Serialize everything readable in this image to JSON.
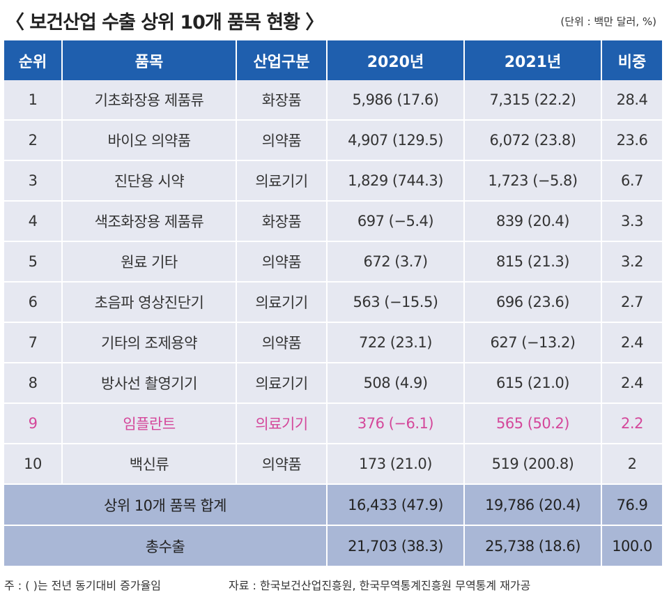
{
  "title": "〈 보건산업 수출 상위 10개 품목 현황 〉",
  "unit": "(단위 : 백만 달러, %)",
  "headers": [
    "순위",
    "품목",
    "산업구분",
    "2020년",
    "2021년",
    "비중"
  ],
  "rows": [
    {
      "rank": "1",
      "item": "기초화장용 제품류",
      "category": "화장품",
      "y2020": "5,986 (17.6)",
      "y2021": "7,315 (22.2)",
      "share": "28.4"
    },
    {
      "rank": "2",
      "item": "바이오 의약품",
      "category": "의약품",
      "y2020": "4,907 (129.5)",
      "y2021": "6,072 (23.8)",
      "share": "23.6"
    },
    {
      "rank": "3",
      "item": "진단용 시약",
      "category": "의료기기",
      "y2020": "1,829 (744.3)",
      "y2021": "1,723 (−5.8)",
      "share": "6.7"
    },
    {
      "rank": "4",
      "item": "색조화장용 제품류",
      "category": "화장품",
      "y2020": "697 (−5.4)",
      "y2021": "839 (20.4)",
      "share": "3.3"
    },
    {
      "rank": "5",
      "item": "원료 기타",
      "category": "의약품",
      "y2020": "672 (3.7)",
      "y2021": "815 (21.3)",
      "share": "3.2"
    },
    {
      "rank": "6",
      "item": "초음파 영상진단기",
      "category": "의료기기",
      "y2020": "563 (−15.5)",
      "y2021": "696 (23.6)",
      "share": "2.7"
    },
    {
      "rank": "7",
      "item": "기타의 조제용약",
      "category": "의약품",
      "y2020": "722 (23.1)",
      "y2021": "627 (−13.2)",
      "share": "2.4"
    },
    {
      "rank": "8",
      "item": "방사선 촬영기기",
      "category": "의료기기",
      "y2020": "508 (4.9)",
      "y2021": "615 (21.0)",
      "share": "2.4"
    },
    {
      "rank": "9",
      "item": "임플란트",
      "category": "의료기기",
      "y2020": "376 (−6.1)",
      "y2021": "565 (50.2)",
      "share": "2.2"
    },
    {
      "rank": "10",
      "item": "백신류",
      "category": "의약품",
      "y2020": "173 (21.0)",
      "y2021": "519 (200.8)",
      "share": "2"
    }
  ],
  "summary": [
    {
      "label": "상위 10개 품목 합계",
      "y2020": "16,433 (47.9)",
      "y2021": "19,786 (20.4)",
      "share": "76.9"
    },
    {
      "label": "총수출",
      "y2020": "21,703 (38.3)",
      "y2021": "25,738 (18.6)",
      "share": "100.0"
    }
  ],
  "highlight_color": "#d4479a",
  "header_color": "#1f5fae",
  "footnote": "주 : (   )는 전년 동기대비 증가율임",
  "source": "자료 : 한국보건산업진흥원, 한국무역통계진흥원 무역통계 재가공"
}
